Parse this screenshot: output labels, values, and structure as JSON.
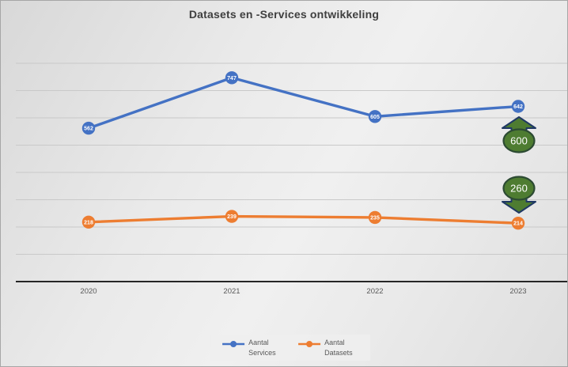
{
  "title": "Datasets en -Services ontwikkeling",
  "chart_data": {
    "type": "line",
    "categories": [
      "2020",
      "2021",
      "2022",
      "2023"
    ],
    "series": [
      {
        "name": "Aantal Services",
        "values": [
          562,
          747,
          605,
          642
        ],
        "color": "#4472c4"
      },
      {
        "name": "Aantal Datasets",
        "values": [
          218,
          239,
          235,
          214
        ],
        "color": "#ed7d31"
      }
    ],
    "title": "Datasets en -Services ontwikkeling",
    "xlabel": "",
    "ylabel": "",
    "ylim": [
      0,
      800
    ],
    "gridline_step": 100,
    "grid": true,
    "y_axis_labels_visible": false,
    "legend_position": "bottom-center",
    "data_labels_style": "white numbers inside round markers",
    "axis_color": "#262626",
    "gridline_color": "#c9c9c9",
    "tick_label_color": "#595959",
    "annotations": [
      {
        "label": "600",
        "direction": "up",
        "fill": "#4e7c31",
        "arrow_outline": "#1f3864",
        "oval_outline": "#2c4a33",
        "text_color": "#ffffff"
      },
      {
        "label": "260",
        "direction": "down",
        "fill": "#4e7c31",
        "arrow_outline": "#1f3864",
        "oval_outline": "#2c4a33",
        "text_color": "#ffffff"
      }
    ]
  }
}
